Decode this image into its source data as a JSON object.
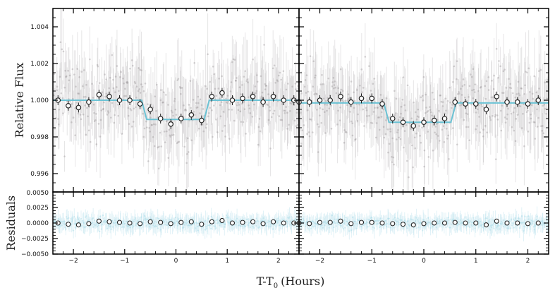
{
  "chart_data": {
    "type": "scatter",
    "xlabel": "T-T",
    "xlabel_sub": "0",
    "xlabel_unit": "(Hours)",
    "ylabel_top": "Relative Flux",
    "ylabel_bottom": "Residuals",
    "xlim": [
      -2.4,
      2.4
    ],
    "ylim_top": [
      0.995,
      1.005
    ],
    "ylim_bottom": [
      -0.005,
      0.005
    ],
    "x_ticks": [
      -2,
      -1,
      0,
      1,
      2
    ],
    "x_tick_labels": [
      "−2",
      "−1",
      "0",
      "1",
      "2"
    ],
    "y_ticks_top": [
      0.996,
      0.998,
      1.0,
      1.002,
      1.004
    ],
    "y_tick_labels_top": [
      "0.996",
      "0.998",
      "1.000",
      "1.002",
      "1.004"
    ],
    "y_ticks_bottom": [
      -0.005,
      -0.0025,
      0.0,
      0.0025,
      0.005
    ],
    "y_tick_labels_bottom": [
      "−0.0050",
      "−0.0025",
      "0.0000",
      "0.0025",
      "0.0050"
    ],
    "colors": {
      "raw": "#8f8a8c",
      "model": "#6cc3d5",
      "residual": "#a9dbe8",
      "binned_face": "#ffffff",
      "binned_edge": "#222222"
    },
    "panels": [
      {
        "model": {
          "baseline": 1.0,
          "depth": 0.00105,
          "t_start": -0.62,
          "t_end": 0.6
        },
        "binned": {
          "x": [
            -2.3,
            -2.1,
            -1.9,
            -1.7,
            -1.5,
            -1.3,
            -1.1,
            -0.9,
            -0.7,
            -0.5,
            -0.3,
            -0.1,
            0.1,
            0.3,
            0.5,
            0.7,
            0.9,
            1.1,
            1.3,
            1.5,
            1.7,
            1.9,
            2.1,
            2.3
          ],
          "y": [
            1.0,
            0.9997,
            0.9996,
            0.9999,
            1.0003,
            1.0002,
            1.0,
            1.0,
            0.9998,
            0.9995,
            0.999,
            0.9987,
            0.999,
            0.9992,
            0.9989,
            1.0002,
            1.0004,
            1.0,
            1.0001,
            1.0002,
            0.9999,
            1.0002,
            1.0,
            1.0
          ],
          "residual": [
            0.0,
            -0.0002,
            -0.0003,
            -0.0001,
            0.0003,
            0.0002,
            0.0001,
            0.0,
            -0.0001,
            0.0002,
            0.0001,
            -0.0001,
            0.0001,
            0.0002,
            -0.0002,
            0.0002,
            0.0004,
            0.0,
            0.0001,
            0.0002,
            -0.0001,
            0.0002,
            0.0,
            0.0
          ]
        }
      },
      {
        "model": {
          "baseline": 0.99985,
          "depth": 0.00105,
          "t_start": -0.72,
          "t_end": 0.57
        },
        "binned": {
          "x": [
            -2.4,
            -2.2,
            -2.0,
            -1.8,
            -1.6,
            -1.4,
            -1.2,
            -1.0,
            -0.8,
            -0.6,
            -0.4,
            -0.2,
            0.0,
            0.2,
            0.4,
            0.6,
            0.8,
            1.0,
            1.2,
            1.4,
            1.6,
            1.8,
            2.0,
            2.2
          ],
          "y": [
            0.9999,
            0.9999,
            1.0,
            1.0,
            1.0002,
            0.9999,
            1.0001,
            1.0001,
            0.9998,
            0.999,
            0.9988,
            0.9986,
            0.9988,
            0.9989,
            0.999,
            0.9999,
            0.9998,
            0.9998,
            0.9995,
            1.0002,
            0.9999,
            0.9999,
            0.9998,
            1.0
          ],
          "residual": [
            0.0,
            -0.0001,
            0.0001,
            0.0001,
            0.0003,
            -0.0001,
            0.0001,
            0.0001,
            0.0,
            -0.0001,
            -0.0002,
            -0.0003,
            -0.0001,
            0.0,
            0.0,
            0.0001,
            0.0,
            0.0,
            -0.0003,
            0.0003,
            0.0,
            0.0,
            -0.0001,
            0.0
          ]
        }
      }
    ]
  }
}
